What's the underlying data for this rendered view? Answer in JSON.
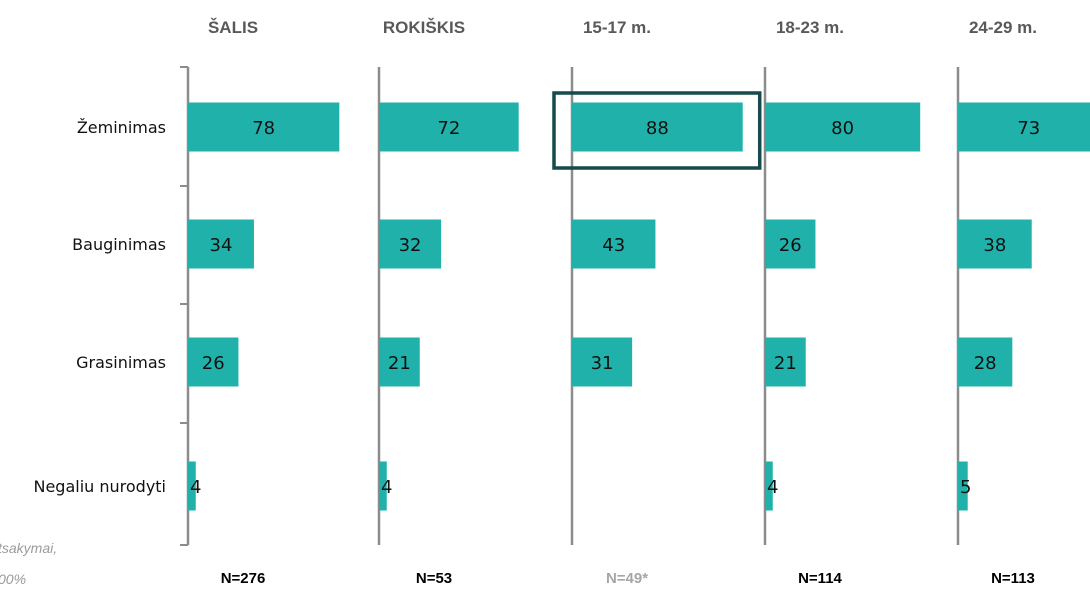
{
  "chart_data": {
    "type": "bar",
    "orientation": "horizontal",
    "categories": [
      "Žeminimas",
      "Bauginimas",
      "Grasinimas",
      "Negaliu nurodyti"
    ],
    "panels": [
      {
        "title": "ŠALIS",
        "n": "N=276",
        "values": [
          78,
          34,
          26,
          4
        ],
        "title_color": "#595959",
        "n_color": "#000000",
        "highlight_category": null
      },
      {
        "title": "ROKIŠKIS",
        "n": "N=53",
        "values": [
          72,
          32,
          21,
          4
        ],
        "title_color": "#595959",
        "n_color": "#000000",
        "highlight_category": null
      },
      {
        "title": "15-17 m.",
        "n": "N=49*",
        "values": [
          88,
          43,
          31,
          null
        ],
        "title_color": "#595959",
        "n_color": "#a6a6a6",
        "highlight_category": "Žeminimas"
      },
      {
        "title": "18-23 m.",
        "n": "N=114",
        "values": [
          80,
          26,
          21,
          4
        ],
        "title_color": "#595959",
        "n_color": "#000000",
        "highlight_category": null
      },
      {
        "title": "24-29 m.",
        "n": "N=113",
        "values": [
          73,
          38,
          28,
          5
        ],
        "title_color": "#595959",
        "n_color": "#000000",
        "highlight_category": null
      }
    ],
    "bar_color": "#20b2aa",
    "axis_color": "#8c8c8c",
    "highlight_color": "#174a4a",
    "footnote": [
      "tsakymai,",
      "00%"
    ]
  }
}
